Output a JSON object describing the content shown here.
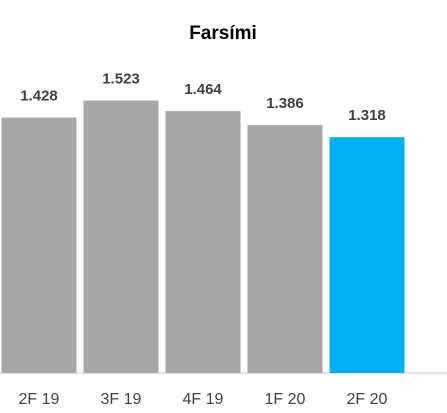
{
  "chart_data": {
    "type": "bar",
    "title": "Farsími",
    "categories": [
      "2F 19",
      "3F 19",
      "4F 19",
      "1F 20",
      "2F 20"
    ],
    "values": [
      1.428,
      1.523,
      1.464,
      1.386,
      1.318
    ],
    "colors": [
      "#a6a6a6",
      "#a6a6a6",
      "#a6a6a6",
      "#a6a6a6",
      "#00b0f0"
    ],
    "ylim": [
      0,
      1.8
    ]
  }
}
